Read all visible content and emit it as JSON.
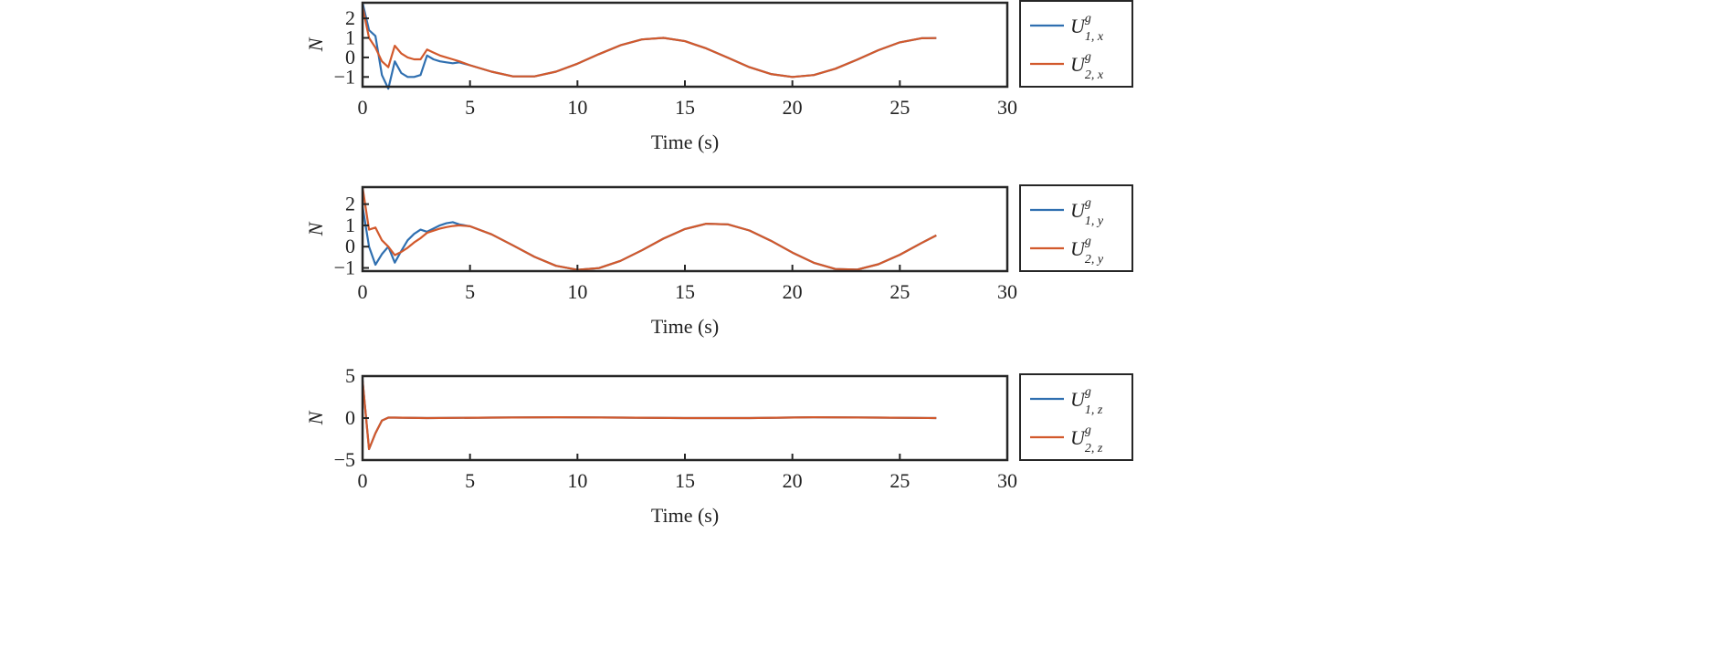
{
  "chart_data": [
    {
      "type": "line",
      "xlabel": "Time (s)",
      "ylabel": "N",
      "xlim": [
        0,
        30
      ],
      "ylim": [
        -1.5,
        2.8
      ],
      "xticks": [
        0,
        5,
        10,
        15,
        20,
        25,
        30
      ],
      "yticks": [
        -1,
        0,
        1,
        2
      ],
      "legend_position": "right",
      "series": [
        {
          "name": "U^g_{1,x}",
          "base": "U",
          "sup": "g",
          "sub": "1, x",
          "color": "#2f6fb0",
          "x": [
            0,
            0.3,
            0.6,
            0.9,
            1.2,
            1.5,
            1.8,
            2.1,
            2.4,
            2.7,
            3.0,
            3.3,
            3.6,
            3.9,
            4.2,
            4.5,
            5,
            6,
            7,
            8,
            9,
            10,
            11,
            12,
            13,
            14,
            15,
            16,
            17,
            18,
            19,
            20,
            21,
            22,
            23,
            24,
            25,
            26,
            26.7
          ],
          "y": [
            2.8,
            1.4,
            1.1,
            -0.9,
            -1.6,
            -0.2,
            -0.8,
            -1.0,
            -1.0,
            -0.9,
            0.1,
            -0.1,
            -0.2,
            -0.25,
            -0.3,
            -0.25,
            -0.4,
            -0.73,
            -0.97,
            -0.97,
            -0.73,
            -0.32,
            0.17,
            0.62,
            0.92,
            1.0,
            0.83,
            0.46,
            -0.02,
            -0.5,
            -0.85,
            -1.0,
            -0.9,
            -0.58,
            -0.12,
            0.37,
            0.77,
            0.98,
            0.99
          ]
        },
        {
          "name": "U^g_{2,x}",
          "base": "U",
          "sup": "g",
          "sub": "2, x",
          "color": "#d2592c",
          "x": [
            0,
            0.3,
            0.6,
            0.9,
            1.2,
            1.5,
            1.8,
            2.1,
            2.4,
            2.7,
            3.0,
            3.3,
            3.6,
            3.9,
            4.2,
            4.5,
            5,
            6,
            7,
            8,
            9,
            10,
            11,
            12,
            13,
            14,
            15,
            16,
            17,
            18,
            19,
            20,
            21,
            22,
            23,
            24,
            25,
            26,
            26.7
          ],
          "y": [
            2.6,
            1.0,
            0.5,
            -0.2,
            -0.5,
            0.6,
            0.2,
            0.0,
            -0.1,
            -0.1,
            0.4,
            0.25,
            0.1,
            0.0,
            -0.1,
            -0.2,
            -0.4,
            -0.73,
            -0.97,
            -0.97,
            -0.73,
            -0.32,
            0.17,
            0.62,
            0.92,
            1.0,
            0.83,
            0.46,
            -0.02,
            -0.5,
            -0.85,
            -1.0,
            -0.9,
            -0.58,
            -0.12,
            0.37,
            0.77,
            0.98,
            0.99
          ]
        }
      ]
    },
    {
      "type": "line",
      "xlabel": "Time (s)",
      "ylabel": "N",
      "xlim": [
        0,
        30
      ],
      "ylim": [
        -1.15,
        2.8
      ],
      "xticks": [
        0,
        5,
        10,
        15,
        20,
        25,
        30
      ],
      "yticks": [
        -1,
        0,
        1,
        2
      ],
      "legend_position": "right",
      "series": [
        {
          "name": "U^g_{1,y}",
          "base": "U",
          "sup": "g",
          "sub": "1, y",
          "color": "#2f6fb0",
          "x": [
            0,
            0.3,
            0.6,
            0.9,
            1.2,
            1.5,
            1.8,
            2.1,
            2.4,
            2.7,
            3.0,
            3.3,
            3.6,
            3.9,
            4.2,
            4.5,
            5,
            6,
            7,
            8,
            9,
            10,
            11,
            12,
            13,
            14,
            15,
            16,
            17,
            18,
            19,
            20,
            21,
            22,
            23,
            24,
            25,
            26,
            26.7
          ],
          "y": [
            1.9,
            0,
            -0.85,
            -0.35,
            0,
            -0.75,
            -0.2,
            0.3,
            0.6,
            0.8,
            0.7,
            0.85,
            1.0,
            1.1,
            1.15,
            1.05,
            0.96,
            0.58,
            0.06,
            -0.48,
            -0.9,
            -1.09,
            -1.01,
            -0.67,
            -0.17,
            0.38,
            0.83,
            1.08,
            1.05,
            0.76,
            0.28,
            -0.28,
            -0.76,
            -1.05,
            -1.08,
            -0.83,
            -0.38,
            0.17,
            0.53
          ]
        },
        {
          "name": "U^g_{2,y}",
          "base": "U",
          "sup": "g",
          "sub": "2, y",
          "color": "#d2592c",
          "x": [
            0,
            0.3,
            0.6,
            0.9,
            1.2,
            1.5,
            1.8,
            2.1,
            2.4,
            2.7,
            3.0,
            3.3,
            3.6,
            3.9,
            4.2,
            4.5,
            5,
            6,
            7,
            8,
            9,
            10,
            11,
            12,
            13,
            14,
            15,
            16,
            17,
            18,
            19,
            20,
            21,
            22,
            23,
            24,
            25,
            26,
            26.7
          ],
          "y": [
            2.8,
            0.8,
            0.9,
            0.3,
            0,
            -0.4,
            -0.25,
            -0.05,
            0.2,
            0.4,
            0.65,
            0.75,
            0.85,
            0.92,
            0.97,
            1.0,
            0.96,
            0.58,
            0.06,
            -0.48,
            -0.9,
            -1.09,
            -1.01,
            -0.67,
            -0.17,
            0.38,
            0.83,
            1.08,
            1.05,
            0.76,
            0.28,
            -0.28,
            -0.76,
            -1.05,
            -1.08,
            -0.83,
            -0.38,
            0.17,
            0.53
          ]
        }
      ]
    },
    {
      "type": "line",
      "xlabel": "Time (s)",
      "ylabel": "N",
      "xlim": [
        0,
        30
      ],
      "ylim": [
        -5,
        5
      ],
      "xticks": [
        0,
        5,
        10,
        15,
        20,
        25,
        30
      ],
      "yticks": [
        -5,
        0,
        5
      ],
      "legend_position": "right",
      "series": [
        {
          "name": "U^g_{1,z}",
          "base": "U",
          "sup": "g",
          "sub": "1, z",
          "color": "#2f6fb0",
          "x": [
            0,
            0.3,
            0.6,
            0.9,
            1.2,
            1.5,
            3,
            6,
            9,
            12,
            15,
            18,
            21,
            24,
            26.7
          ],
          "y": [
            4.5,
            -3.7,
            -1.8,
            -0.3,
            0.05,
            0.05,
            0,
            0.05,
            0.1,
            0.05,
            0,
            0,
            0.1,
            0.05,
            0
          ]
        },
        {
          "name": "U^g_{2,z}",
          "base": "U",
          "sup": "g",
          "sub": "2, z",
          "color": "#d2592c",
          "x": [
            0,
            0.3,
            0.6,
            0.9,
            1.2,
            1.5,
            3,
            6,
            9,
            12,
            15,
            18,
            21,
            24,
            26.7
          ],
          "y": [
            4.5,
            -3.7,
            -1.8,
            -0.3,
            0.05,
            0.05,
            0,
            0.05,
            0.1,
            0.05,
            0,
            0,
            0.1,
            0.05,
            0
          ]
        }
      ]
    }
  ]
}
